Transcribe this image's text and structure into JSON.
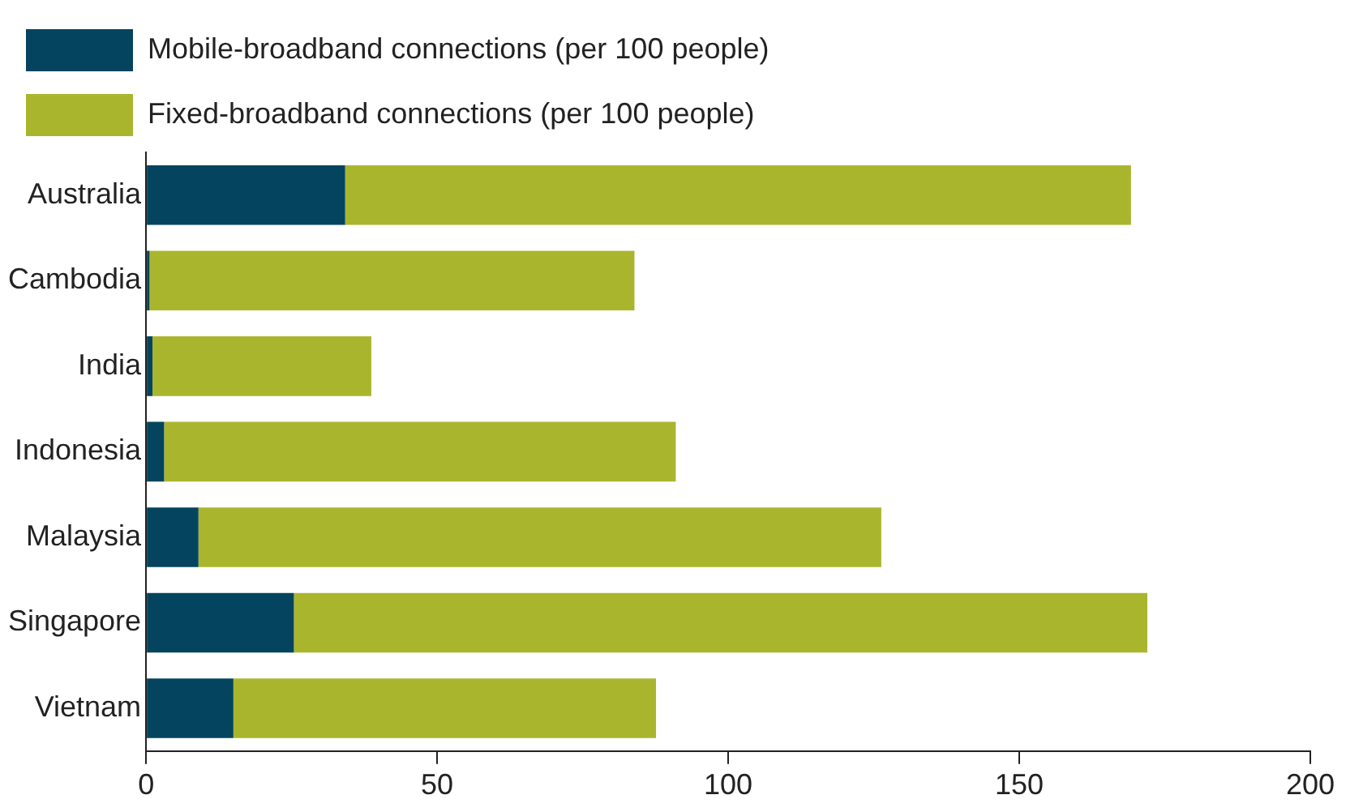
{
  "chart_data": {
    "type": "bar",
    "orientation": "horizontal",
    "stacked": true,
    "categories": [
      "Australia",
      "Cambodia",
      "India",
      "Indonesia",
      "Malaysia",
      "Singapore",
      "Vietnam"
    ],
    "series": [
      {
        "name": "Mobile-broadband connections (per 100 people)",
        "color": "#05445e",
        "values": [
          34.2,
          0.6,
          1.1,
          3.1,
          9.0,
          25.4,
          15.0
        ]
      },
      {
        "name": "Fixed-broadband connections (per 100 people)",
        "color": "#a9b62d",
        "values": [
          135.0,
          83.3,
          37.6,
          87.9,
          117.3,
          146.6,
          72.6
        ]
      }
    ],
    "xlim": [
      0,
      200
    ],
    "xticks": [
      0,
      50,
      100,
      150,
      200
    ],
    "grid": false,
    "legend": "top left"
  }
}
